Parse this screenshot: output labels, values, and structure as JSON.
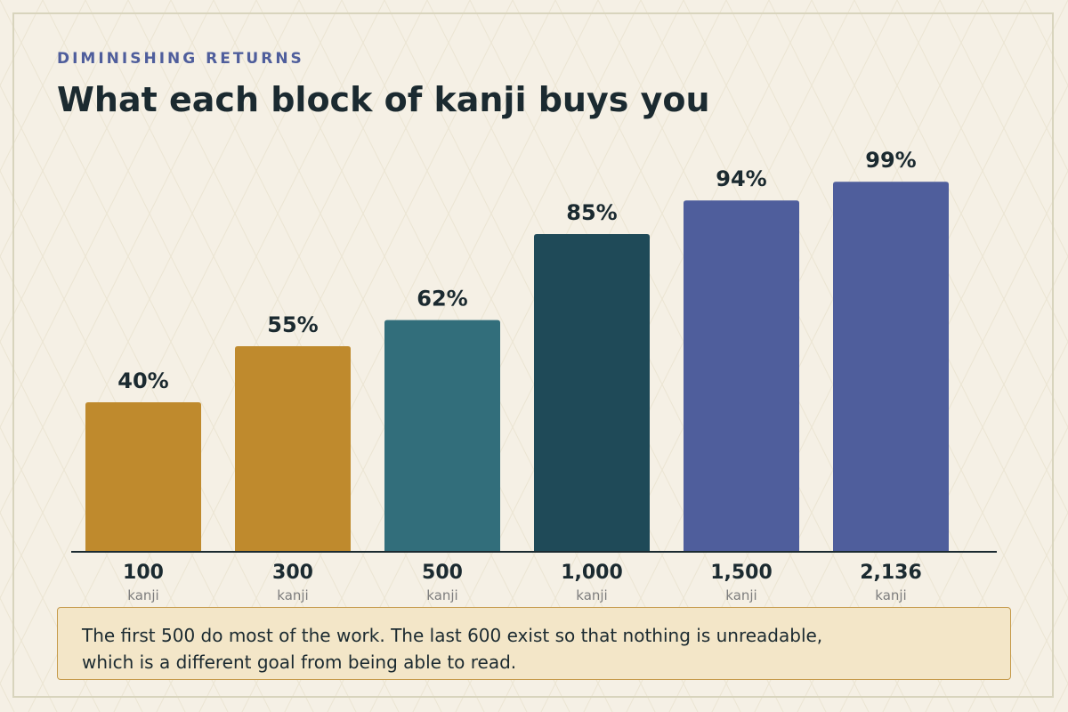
{
  "header": {
    "eyebrow": "DIMINISHING RETURNS",
    "title": "What each block of kanji buys you"
  },
  "chart_data": {
    "type": "bar",
    "categories": [
      "100",
      "300",
      "500",
      "1,000",
      "1,500",
      "2,136"
    ],
    "category_sublabel": "kanji",
    "values": [
      40,
      55,
      62,
      85,
      94,
      99
    ],
    "value_labels": [
      "40%",
      "55%",
      "62%",
      "85%",
      "94%",
      "99%"
    ],
    "bar_colors": [
      "#bf8a2d",
      "#bf8a2d",
      "#326e7b",
      "#1f4a58",
      "#4f5e9c",
      "#4f5e9c"
    ],
    "ylim": [
      0,
      100
    ],
    "grid": false,
    "legend": "none"
  },
  "callout": {
    "line1": "The first 500 do most of the work. The last 600 exist so that nothing is unreadable,",
    "line2": "which is a different goal from being able to read."
  },
  "colors": {
    "background": "#f5f0e5",
    "text": "#1b2a30",
    "accent": "#4f5e9c",
    "muted": "#7d7d7d"
  }
}
